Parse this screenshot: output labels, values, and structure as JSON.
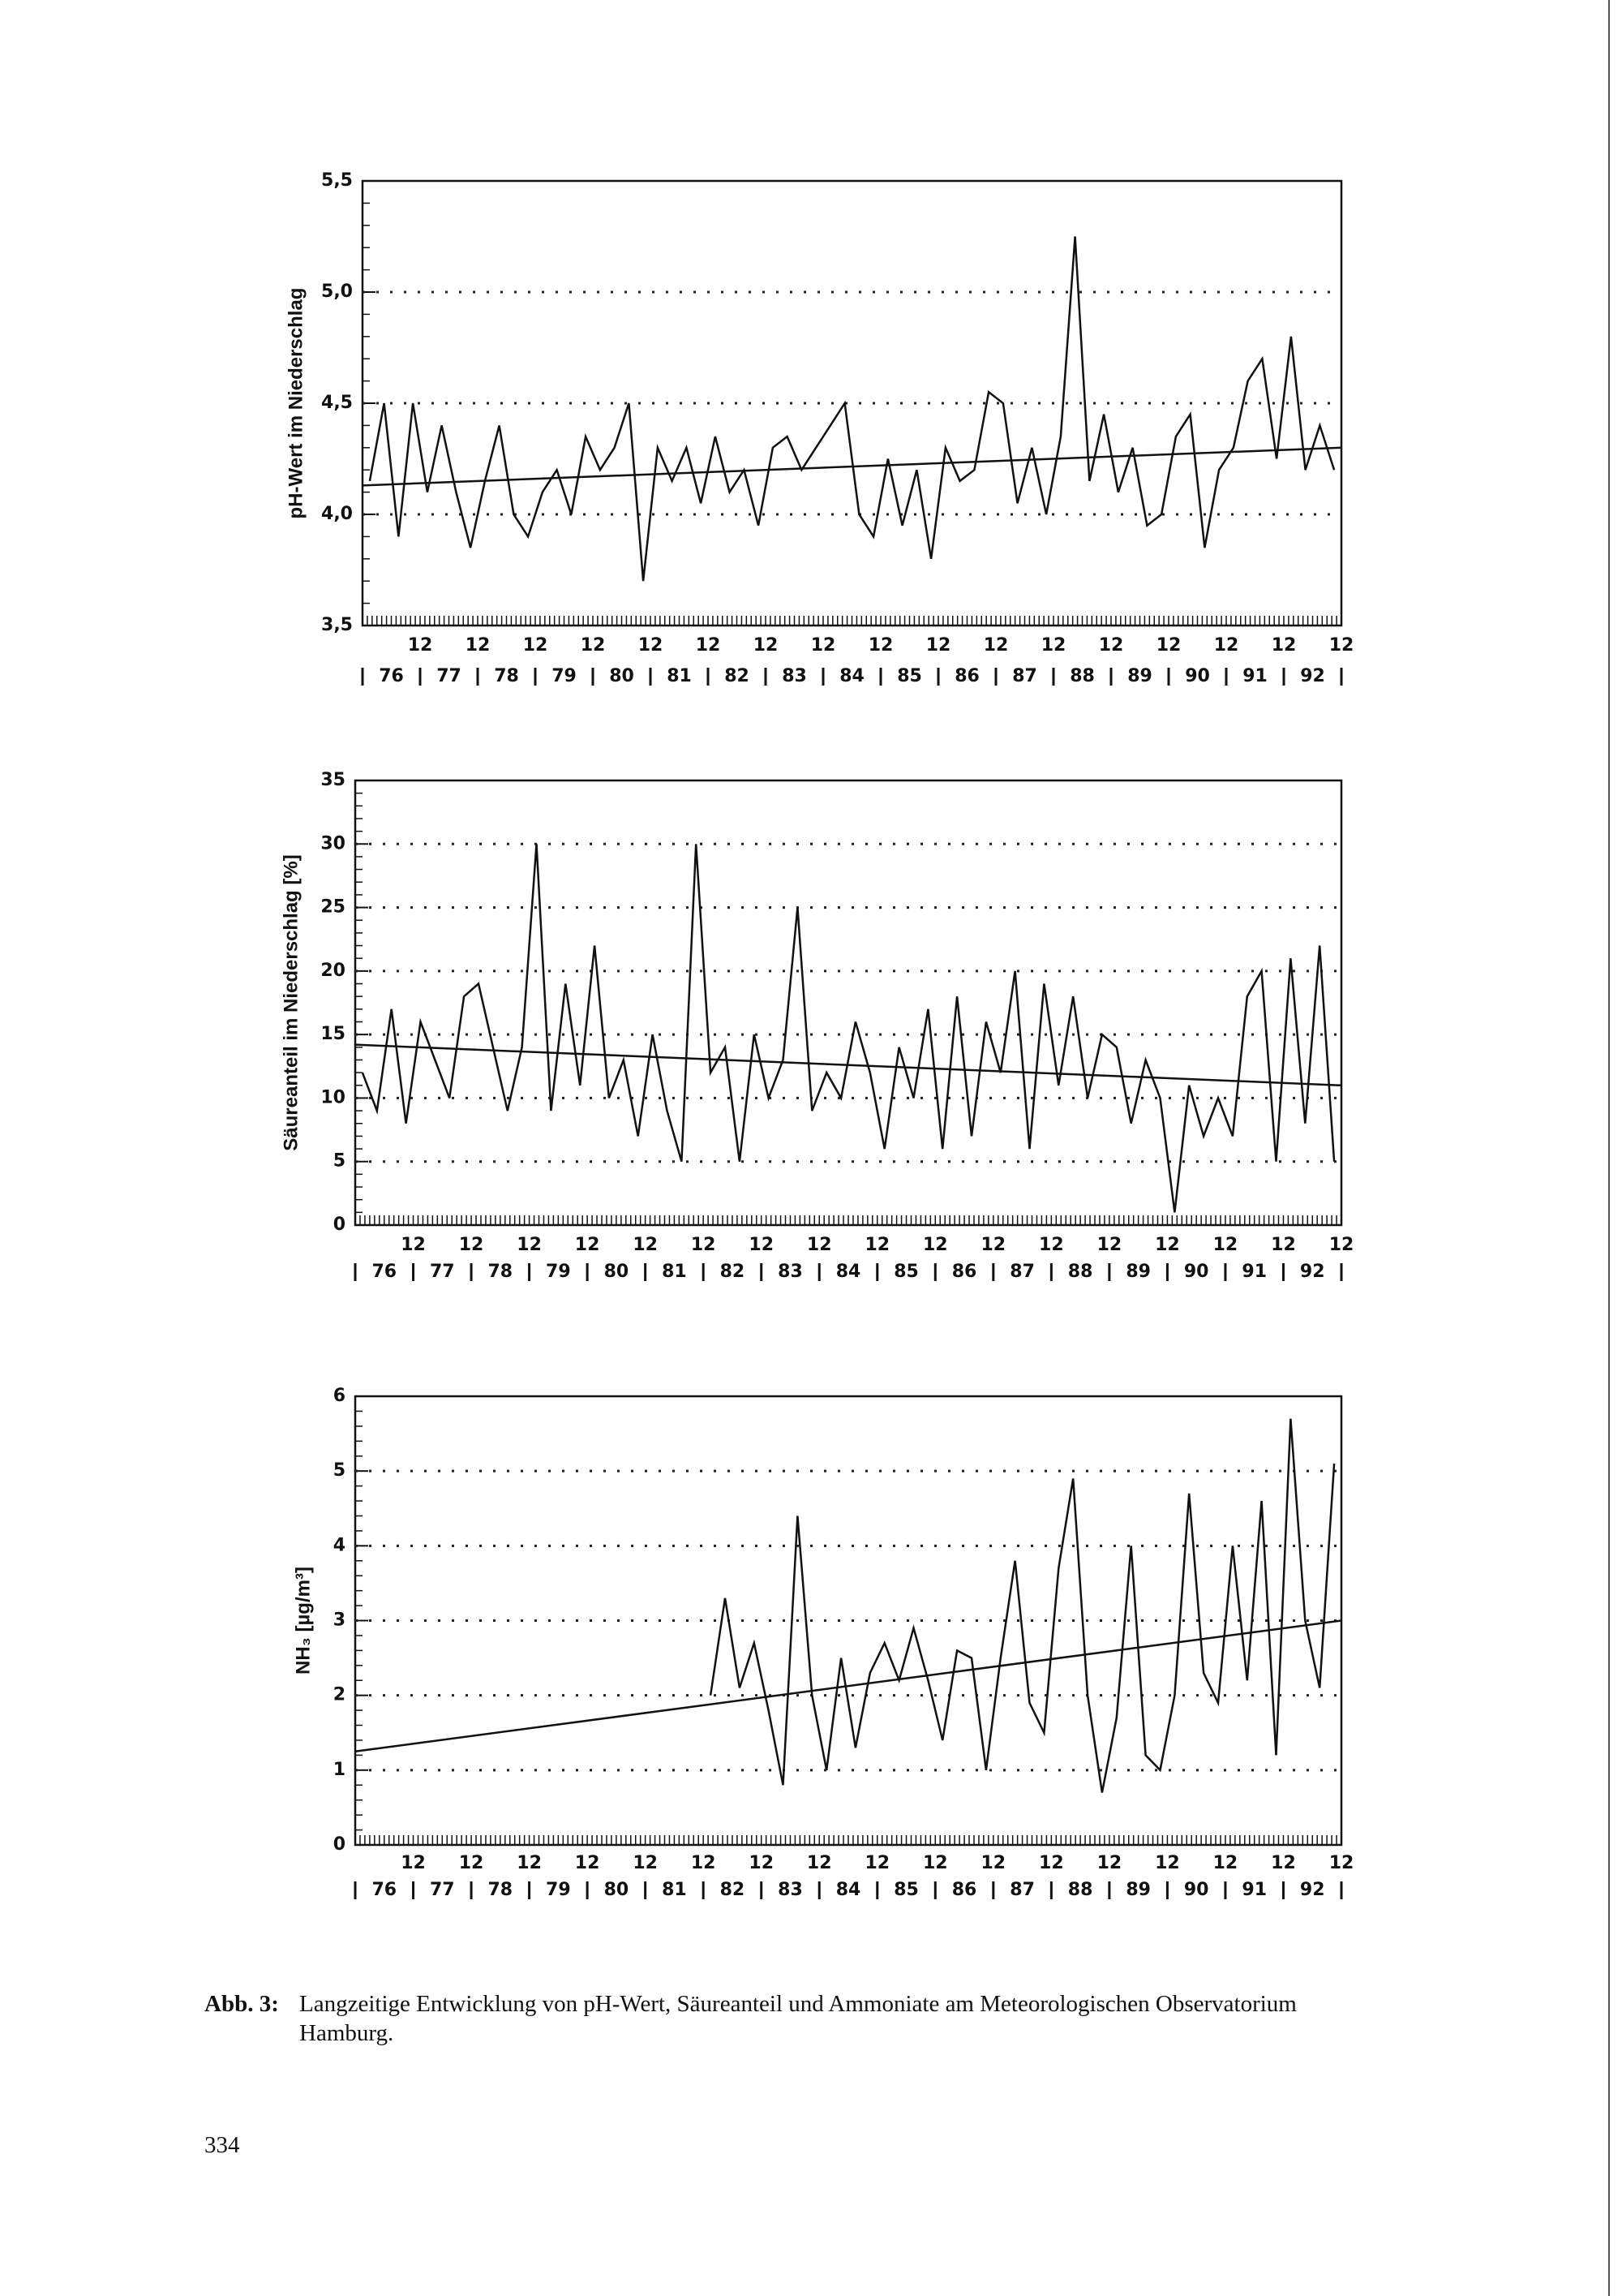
{
  "chart_data": [
    {
      "type": "line",
      "ylabel": "pH-Wert im Niederschlag",
      "ylim": [
        3.5,
        5.5
      ],
      "yticks": [
        {
          "value": 3.5,
          "label": "3,5"
        },
        {
          "value": 4.0,
          "label": "4,0"
        },
        {
          "value": 4.5,
          "label": "4,5"
        },
        {
          "value": 5.0,
          "label": "5,0"
        },
        {
          "value": 5.5,
          "label": "5,5"
        }
      ],
      "grid": true,
      "color": "#111111",
      "month_ticks": [
        "12",
        "12",
        "12",
        "12",
        "12",
        "12",
        "12",
        "12",
        "12",
        "12",
        "12",
        "12",
        "12",
        "12",
        "12",
        "12",
        "12"
      ],
      "years": [
        "76",
        "77",
        "78",
        "79",
        "80",
        "81",
        "82",
        "83",
        "84",
        "85",
        "86",
        "87",
        "88",
        "89",
        "90",
        "91",
        "92"
      ],
      "values": [
        4.15,
        4.5,
        3.9,
        4.5,
        4.1,
        4.4,
        4.1,
        3.85,
        4.15,
        4.4,
        4.0,
        3.9,
        4.1,
        4.2,
        4.0,
        4.35,
        4.2,
        4.3,
        4.5,
        3.7,
        4.3,
        4.15,
        4.3,
        4.05,
        4.35,
        4.1,
        4.2,
        3.95,
        4.3,
        4.35,
        4.2,
        4.3,
        4.4,
        4.5,
        4.0,
        3.9,
        4.25,
        3.95,
        4.2,
        3.8,
        4.3,
        4.15,
        4.2,
        4.55,
        4.5,
        4.05,
        4.3,
        4.0,
        4.35,
        5.25,
        4.15,
        4.45,
        4.1,
        4.3,
        3.95,
        4.0,
        4.35,
        4.45,
        3.85,
        4.2,
        4.3,
        4.6,
        4.7,
        4.25,
        4.8,
        4.2,
        4.4,
        4.2
      ],
      "trend": [
        4.13,
        4.3
      ]
    },
    {
      "type": "line",
      "ylabel": "Säureanteil im Niederschlag [%]",
      "ylim": [
        0,
        35
      ],
      "yticks": [
        0,
        5,
        10,
        15,
        20,
        25,
        30,
        35
      ],
      "grid": true,
      "color": "#111111",
      "month_ticks": [
        "12",
        "12",
        "12",
        "12",
        "12",
        "12",
        "12",
        "12",
        "12",
        "12",
        "12",
        "12",
        "12",
        "12",
        "12",
        "12",
        "12"
      ],
      "years": [
        "76",
        "77",
        "78",
        "79",
        "80",
        "81",
        "82",
        "83",
        "84",
        "85",
        "86",
        "87",
        "88",
        "89",
        "90",
        "91",
        "92"
      ],
      "values": [
        12,
        9,
        17,
        8,
        16,
        13,
        10,
        18,
        19,
        14,
        9,
        14,
        30,
        9,
        19,
        11,
        22,
        10,
        13,
        7,
        15,
        9,
        5,
        30,
        12,
        14,
        5,
        15,
        10,
        13,
        25,
        9,
        12,
        10,
        16,
        12,
        6,
        14,
        10,
        17,
        6,
        18,
        7,
        16,
        12,
        20,
        6,
        19,
        11,
        18,
        10,
        15,
        14,
        8,
        13,
        10,
        1,
        11,
        7,
        10,
        7,
        18,
        20,
        5,
        21,
        8,
        22,
        5
      ],
      "trend": [
        14.2,
        11
      ]
    },
    {
      "type": "line",
      "ylabel": "NH₃ [µg/m³]",
      "ylim": [
        0,
        6
      ],
      "yticks": [
        0,
        1,
        2,
        3,
        4,
        5,
        6
      ],
      "grid": true,
      "color": "#111111",
      "month_ticks": [
        "12",
        "12",
        "12",
        "12",
        "12",
        "12",
        "12",
        "12",
        "12",
        "12",
        "12",
        "12",
        "12",
        "12",
        "12",
        "12",
        "12"
      ],
      "years": [
        "76",
        "77",
        "78",
        "79",
        "80",
        "81",
        "82",
        "83",
        "84",
        "85",
        "86",
        "87",
        "88",
        "89",
        "90",
        "91",
        "92"
      ],
      "values": [
        null,
        null,
        null,
        null,
        null,
        null,
        null,
        null,
        null,
        null,
        null,
        null,
        null,
        null,
        null,
        null,
        null,
        null,
        null,
        null,
        null,
        null,
        null,
        null,
        2.0,
        3.3,
        2.1,
        2.7,
        1.8,
        0.8,
        4.4,
        2.0,
        1.0,
        2.5,
        1.3,
        2.3,
        2.7,
        2.2,
        2.9,
        2.2,
        1.4,
        2.6,
        2.5,
        1.0,
        2.5,
        3.8,
        1.9,
        1.5,
        3.7,
        4.9,
        2.0,
        0.7,
        1.7,
        4.0,
        1.2,
        1.0,
        2.0,
        4.7,
        2.3,
        1.9,
        4.0,
        2.2,
        4.6,
        1.2,
        5.7,
        3.0,
        2.1,
        5.1
      ],
      "trend": [
        1.25,
        3.0
      ]
    }
  ],
  "caption": {
    "label": "Abb. 3:",
    "text": [
      "Langzeitige Entwicklung von pH-Wert, Säureanteil und Ammoniate am Meteorologischen Observatorium",
      "Hamburg."
    ]
  },
  "page_number": "334"
}
